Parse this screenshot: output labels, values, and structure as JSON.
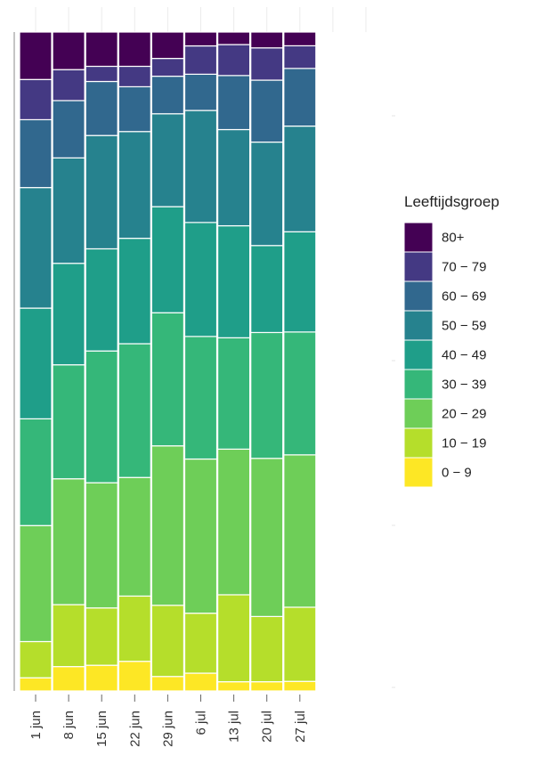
{
  "chart_data": {
    "type": "bar",
    "stacked": true,
    "normalized": true,
    "categories": [
      "1 jun",
      "8 jun",
      "15 jun",
      "22 jun",
      "29 jun",
      "6 jul",
      "13 jul",
      "20 jul",
      "27 jul"
    ],
    "series": [
      {
        "name": "0 - 9",
        "color": "#fde725",
        "values": [
          2.0,
          3.7,
          3.9,
          4.5,
          2.2,
          2.7,
          1.4,
          1.4,
          1.4
        ]
      },
      {
        "name": "10 - 19",
        "color": "#b5de2b",
        "values": [
          5.5,
          9.4,
          8.7,
          9.9,
          10.8,
          9.1,
          13.2,
          9.9,
          10.8
        ]
      },
      {
        "name": "20 - 29",
        "color": "#6ece58",
        "values": [
          17.6,
          19.1,
          19.0,
          18.0,
          24.2,
          23.4,
          22.1,
          24.0,
          22.2
        ]
      },
      {
        "name": "30 - 39",
        "color": "#35b779",
        "values": [
          16.2,
          17.3,
          20.0,
          20.3,
          20.2,
          18.6,
          16.9,
          19.1,
          17.9
        ]
      },
      {
        "name": "40 - 49",
        "color": "#1f9e89",
        "values": [
          16.8,
          15.4,
          15.5,
          16.0,
          16.1,
          17.3,
          17.0,
          13.2,
          14.6
        ]
      },
      {
        "name": "50 - 59",
        "color": "#26828e",
        "values": [
          18.3,
          16.0,
          17.2,
          16.2,
          14.1,
          17.0,
          14.6,
          15.7,
          15.4
        ]
      },
      {
        "name": "60 - 69",
        "color": "#31688e",
        "values": [
          10.3,
          8.7,
          8.2,
          6.8,
          5.7,
          5.5,
          8.2,
          9.4,
          8.4
        ]
      },
      {
        "name": "70 - 79",
        "color": "#443983",
        "values": [
          6.1,
          4.7,
          2.3,
          3.1,
          2.7,
          4.3,
          4.7,
          4.9,
          3.3
        ]
      },
      {
        "name": "80+",
        "color": "#440154",
        "values": [
          7.2,
          5.7,
          5.2,
          5.2,
          4.0,
          2.1,
          1.9,
          2.4,
          2.0
        ]
      }
    ],
    "ylim": [
      0,
      100
    ],
    "legend": {
      "title": "Leeftijdsgroep",
      "placement": "right",
      "entries": [
        "80+",
        "70 − 79",
        "60 − 69",
        "50 − 59",
        "40 − 49",
        "30 − 39",
        "20 − 29",
        "10 − 19",
        "0 − 9"
      ]
    },
    "xlabel": "",
    "ylabel": "",
    "grid": true
  }
}
